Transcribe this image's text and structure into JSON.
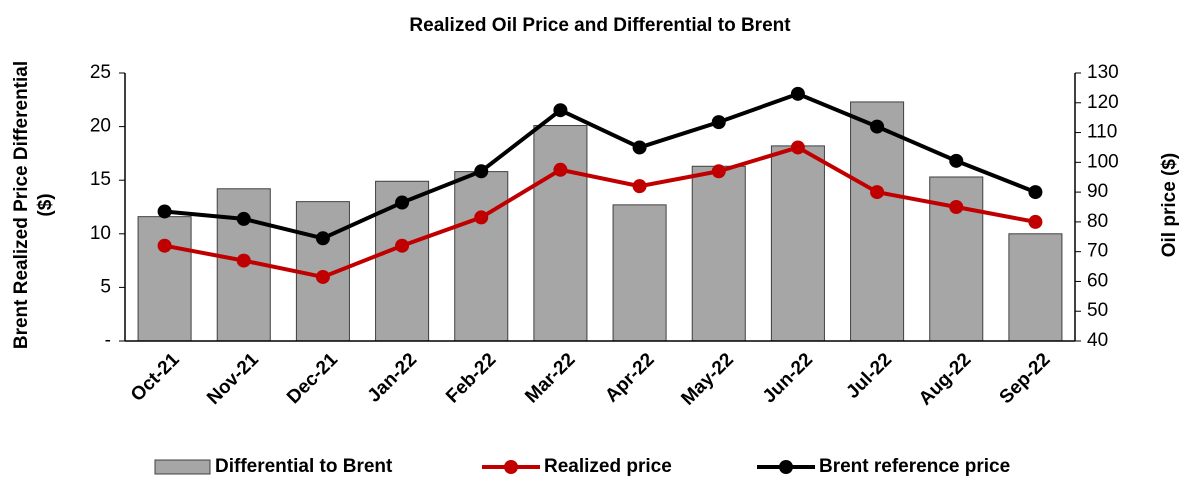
{
  "chart_data": {
    "type": "bar_line",
    "title": "Realized Oil Price and Differential to Brent",
    "y_label": [
      "Brent Realized Price Differential",
      "($)"
    ],
    "y2_label": "Oil price ($)",
    "categories": [
      "Oct-21",
      "Nov-21",
      "Dec-21",
      "Jan-22",
      "Feb-22",
      "Mar-22",
      "Apr-22",
      "May-22",
      "Jun-22",
      "Jul-22",
      "Aug-22",
      "Sep-22"
    ],
    "ylim": [
      0,
      25
    ],
    "yticks": [
      {
        "value": 0,
        "label": "-"
      },
      5,
      10,
      15,
      20,
      25
    ],
    "y2lim": [
      40,
      130
    ],
    "y2ticks": [
      40,
      50,
      60,
      70,
      80,
      90,
      100,
      110,
      120,
      130
    ],
    "series": [
      {
        "name": "Differential to Brent",
        "type": "bar",
        "color": "#a6a6a6",
        "values": [
          11.6,
          14.2,
          13.0,
          14.9,
          15.8,
          20.1,
          12.7,
          16.3,
          18.2,
          22.3,
          15.3,
          10.0
        ]
      },
      {
        "name": "Realized price",
        "type": "line",
        "axis": "y2",
        "color": "#c00000",
        "values": [
          72,
          67,
          61.5,
          72,
          81.5,
          97.5,
          92,
          97,
          105,
          90,
          85,
          80
        ]
      },
      {
        "name": "Brent reference price",
        "type": "line",
        "axis": "y2",
        "color": "#000000",
        "values": [
          83.5,
          81,
          74.5,
          86.5,
          97,
          117.5,
          105,
          113.5,
          123,
          112,
          100.5,
          90
        ]
      }
    ]
  }
}
